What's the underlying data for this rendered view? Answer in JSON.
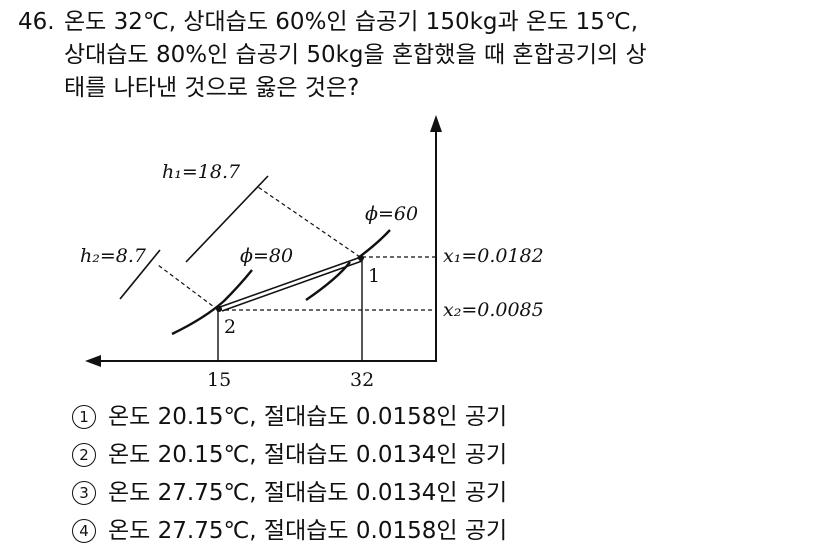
{
  "question": {
    "number": "46.",
    "lines": [
      "온도 32℃, 상대습도 60%인 습공기 150kg과 온도 15℃,",
      "상대습도 80%인 습공기 50kg을 혼합했을 때 혼합공기의 상",
      "태를 나타낸 것으로 옳은 것은?"
    ]
  },
  "diagram": {
    "labels": {
      "h1": "h₁=18.7",
      "h2": "h₂=8.7",
      "phi60": "ϕ=60",
      "phi80": "ϕ=80",
      "x1": "x₁=0.0182",
      "x2": "x₂=0.0085",
      "point1": "1",
      "point2": "2",
      "t15": "15",
      "t32": "32"
    }
  },
  "options": [
    {
      "marker": "1",
      "text": "온도 20.15℃, 절대습도 0.0158인 공기"
    },
    {
      "marker": "2",
      "text": "온도 20.15℃, 절대습도 0.0134인 공기"
    },
    {
      "marker": "3",
      "text": "온도 27.75℃, 절대습도 0.0134인 공기"
    },
    {
      "marker": "4",
      "text": "온도 27.75℃, 절대습도 0.0158인 공기"
    }
  ]
}
